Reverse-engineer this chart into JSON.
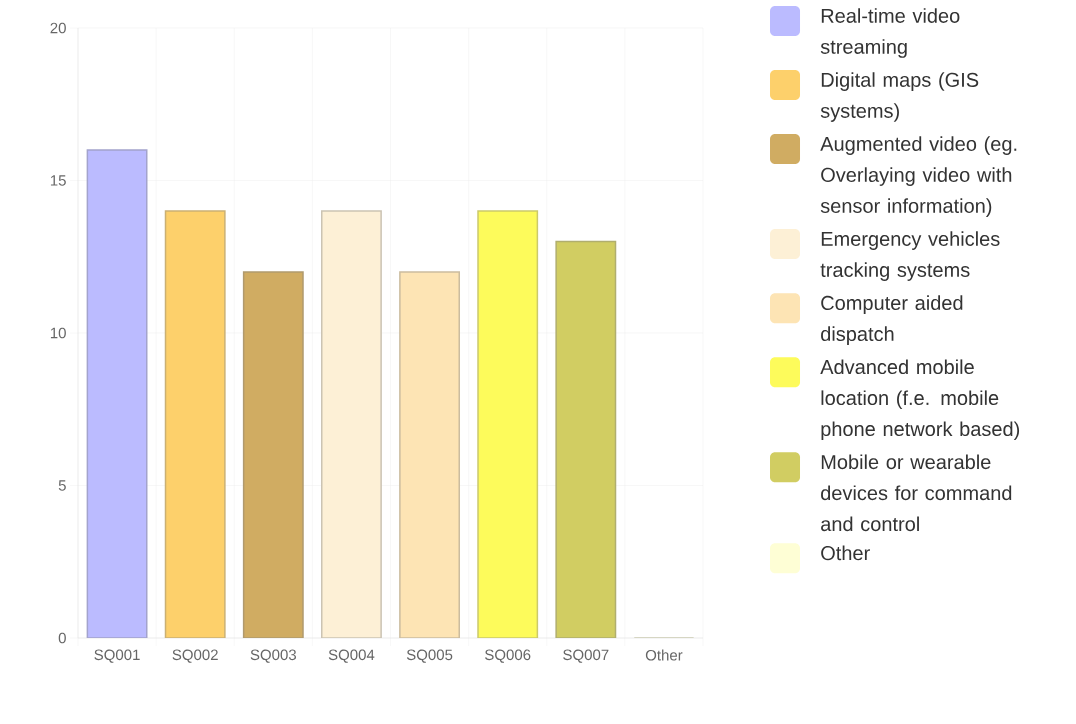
{
  "chart_data": {
    "type": "bar",
    "categories": [
      "SQ001",
      "SQ002",
      "SQ003",
      "SQ004",
      "SQ005",
      "SQ006",
      "SQ007",
      "Other"
    ],
    "series": [
      {
        "name": "Real-time video streaming",
        "color": "#bbbbff",
        "values": [
          16,
          null,
          null,
          null,
          null,
          null,
          null,
          null
        ]
      },
      {
        "name": "Digital maps (GIS systems)",
        "color": "#fdd06b",
        "values": [
          null,
          14,
          null,
          null,
          null,
          null,
          null,
          null
        ]
      },
      {
        "name": "Augmented video (eg. Overlaying video with sensor information)",
        "color": "#d0ac62",
        "values": [
          null,
          null,
          12,
          null,
          null,
          null,
          null,
          null
        ]
      },
      {
        "name": "Emergency vehicles tracking systems",
        "color": "#fdf0d6",
        "values": [
          null,
          null,
          null,
          14,
          null,
          null,
          null,
          null
        ]
      },
      {
        "name": "Computer aided dispatch",
        "color": "#fde4b4",
        "values": [
          null,
          null,
          null,
          null,
          12,
          null,
          null,
          null
        ]
      },
      {
        "name": "Advanced mobile location (f.e. mobile phone network based)",
        "color": "#fdfb5b",
        "values": [
          null,
          null,
          null,
          null,
          null,
          14,
          null,
          null
        ]
      },
      {
        "name": "Mobile or wearable devices for command and control",
        "color": "#d1cd62",
        "values": [
          null,
          null,
          null,
          null,
          null,
          null,
          13,
          null
        ]
      },
      {
        "name": "Other",
        "color": "#fefed5",
        "values": [
          null,
          null,
          null,
          null,
          null,
          null,
          null,
          0
        ]
      }
    ],
    "ylim": [
      0,
      20
    ],
    "yticks": [
      0,
      5,
      10,
      15,
      20
    ],
    "grid": true,
    "legend": "right"
  }
}
